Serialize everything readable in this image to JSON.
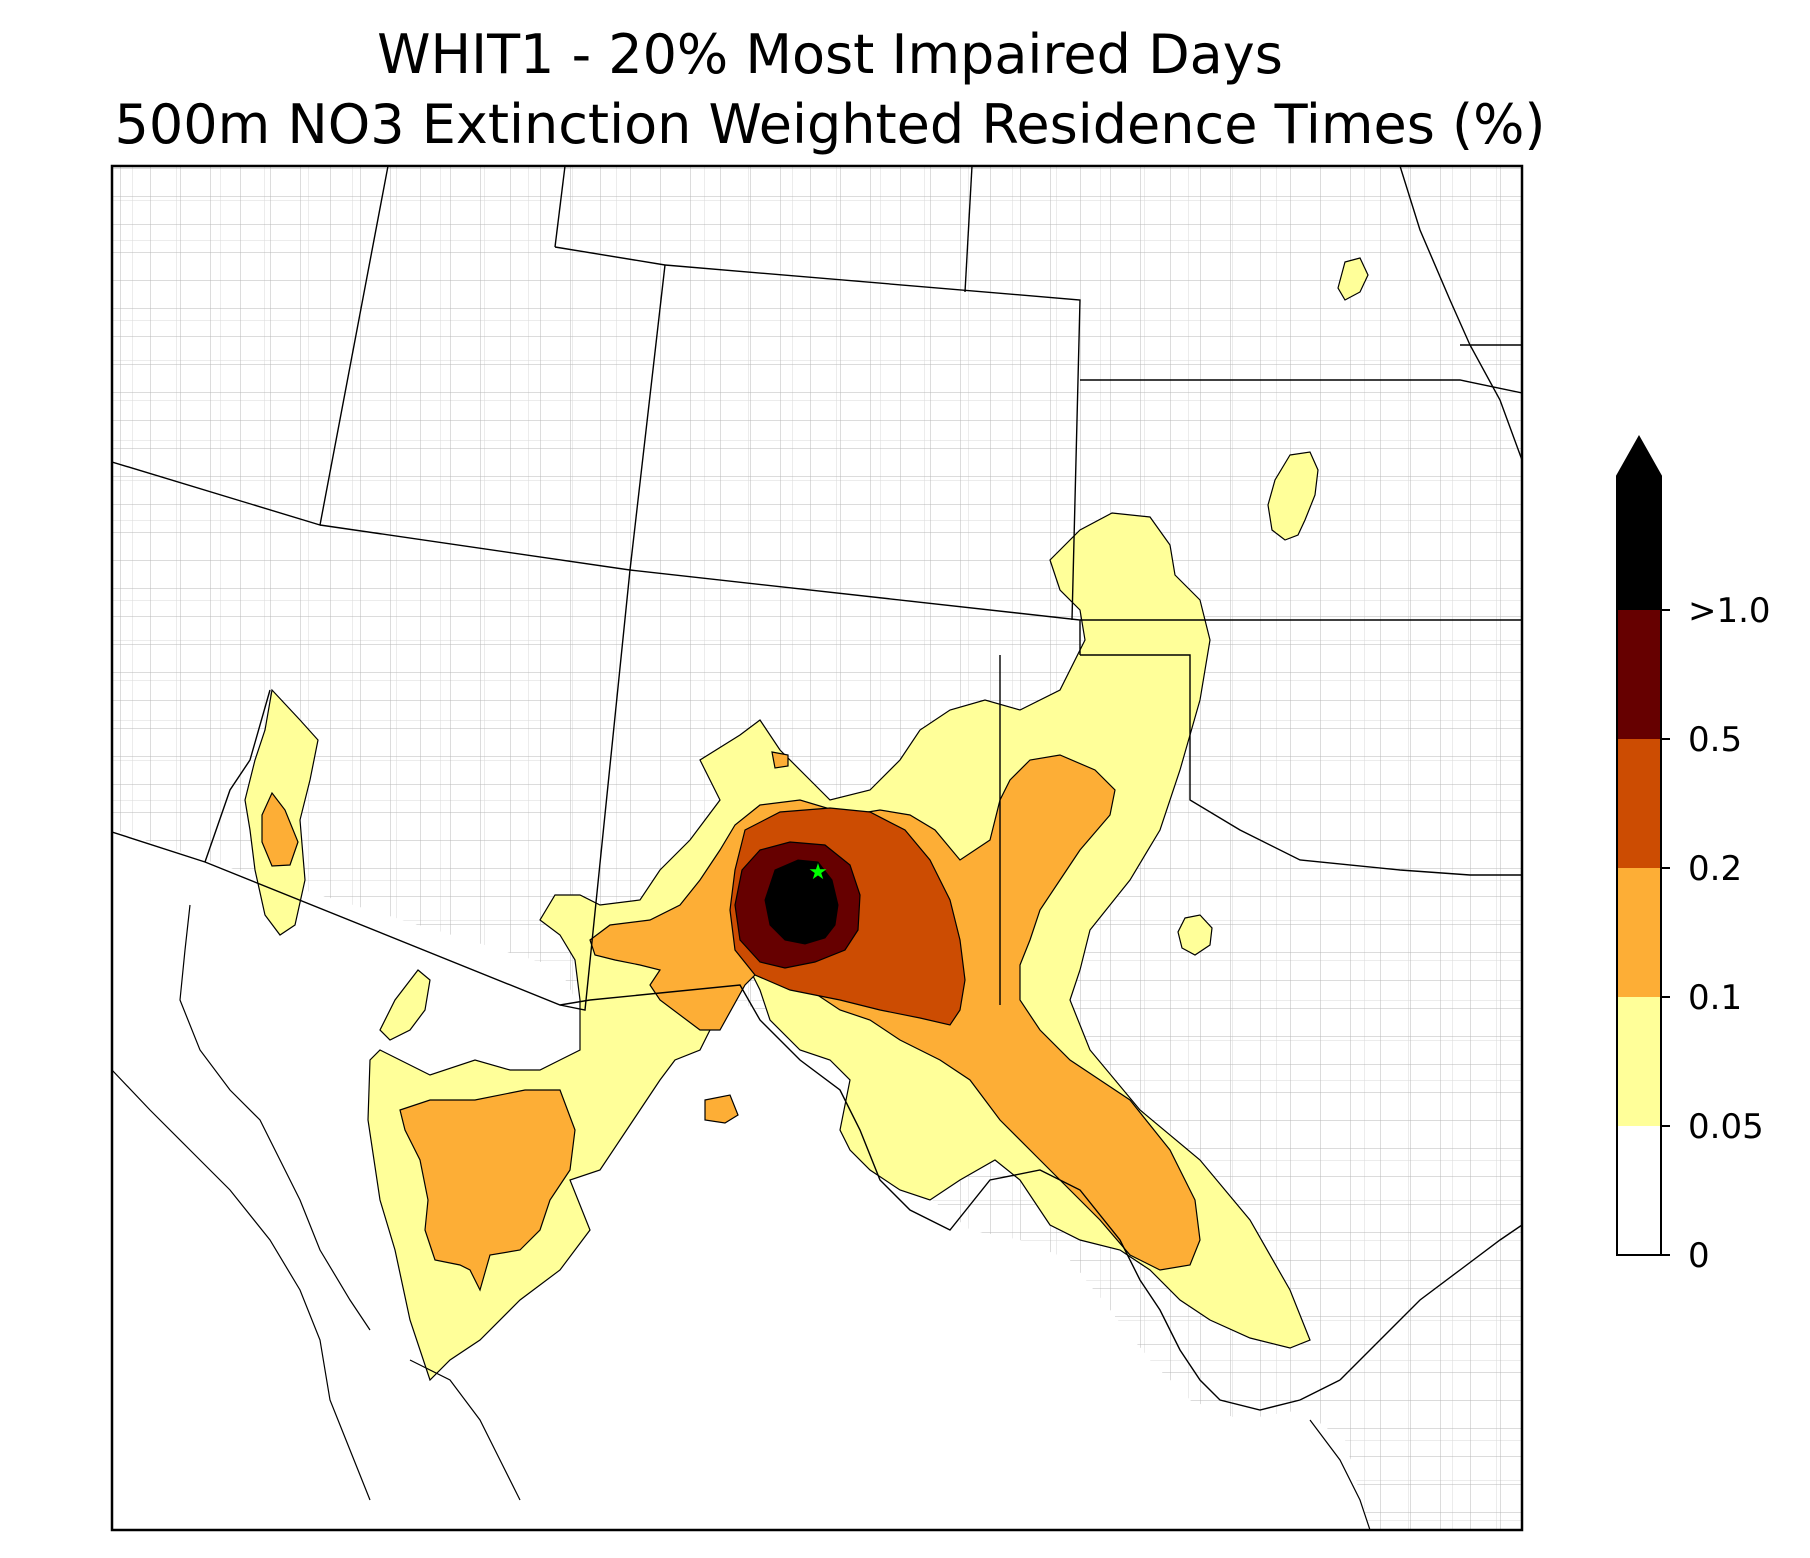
{
  "title": {
    "line1": "WHIT1 - 20% Most Impaired Days",
    "line2": "500m NO3 Extinction Weighted Residence Times (%)"
  },
  "colorbar": {
    "levels": [
      {
        "label": "0",
        "color": "#ffffff"
      },
      {
        "label": "0.05",
        "color": "#ffff99"
      },
      {
        "label": "0.1",
        "color": "#fdae36"
      },
      {
        "label": "0.2",
        "color": "#cc4c02"
      },
      {
        "label": "0.5",
        "color": "#660000"
      },
      {
        "label": ">1.0",
        "color": "#000000"
      }
    ],
    "extend": "max"
  },
  "site_marker": {
    "color": "#00ff00",
    "symbol": "star"
  }
}
